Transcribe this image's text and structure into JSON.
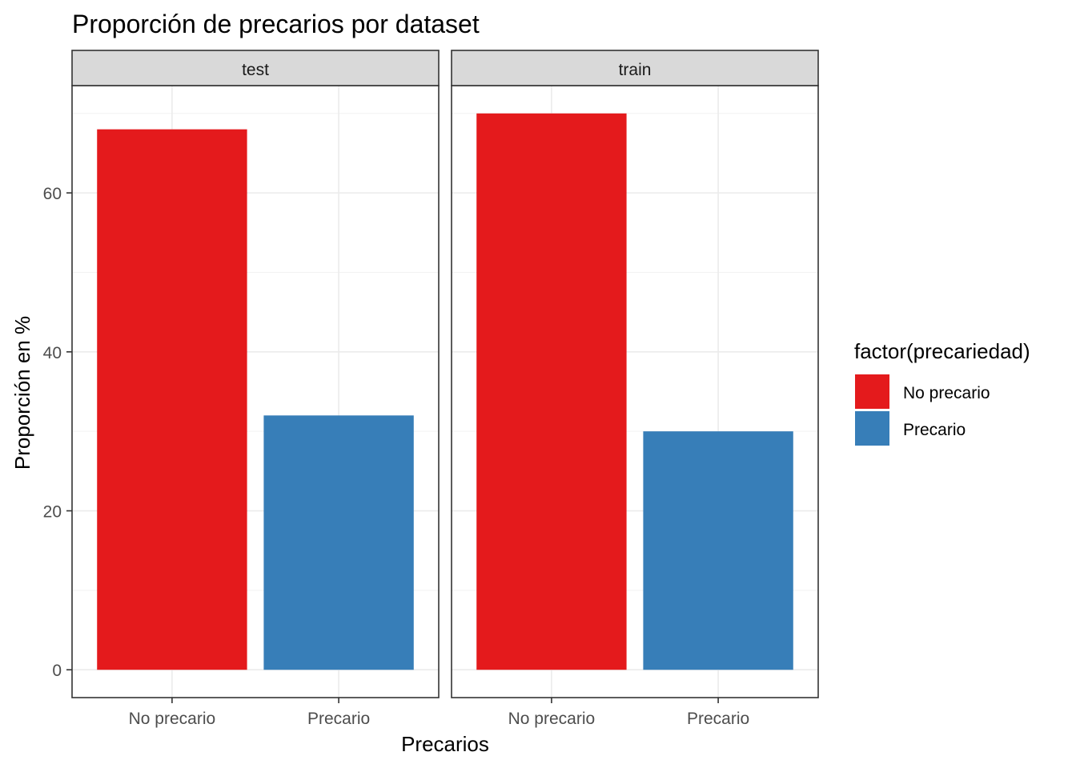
{
  "chart_data": {
    "type": "bar",
    "title": "Proporción de precarios por dataset",
    "xlabel": "Precarios",
    "ylabel": "Proporción en %",
    "ylim": [
      -3.5,
      73.5
    ],
    "yticks": [
      0,
      20,
      40,
      60
    ],
    "grid": true,
    "categories": [
      "No precario",
      "Precario"
    ],
    "facets": [
      {
        "name": "test",
        "values": [
          68,
          32
        ]
      },
      {
        "name": "train",
        "values": [
          70,
          30
        ]
      }
    ],
    "legend": {
      "title": "factor(precariedad)",
      "placement": "right",
      "entries": [
        {
          "label": "No precario",
          "color": "#E41A1C"
        },
        {
          "label": "Precario",
          "color": "#377EB8"
        }
      ]
    }
  }
}
